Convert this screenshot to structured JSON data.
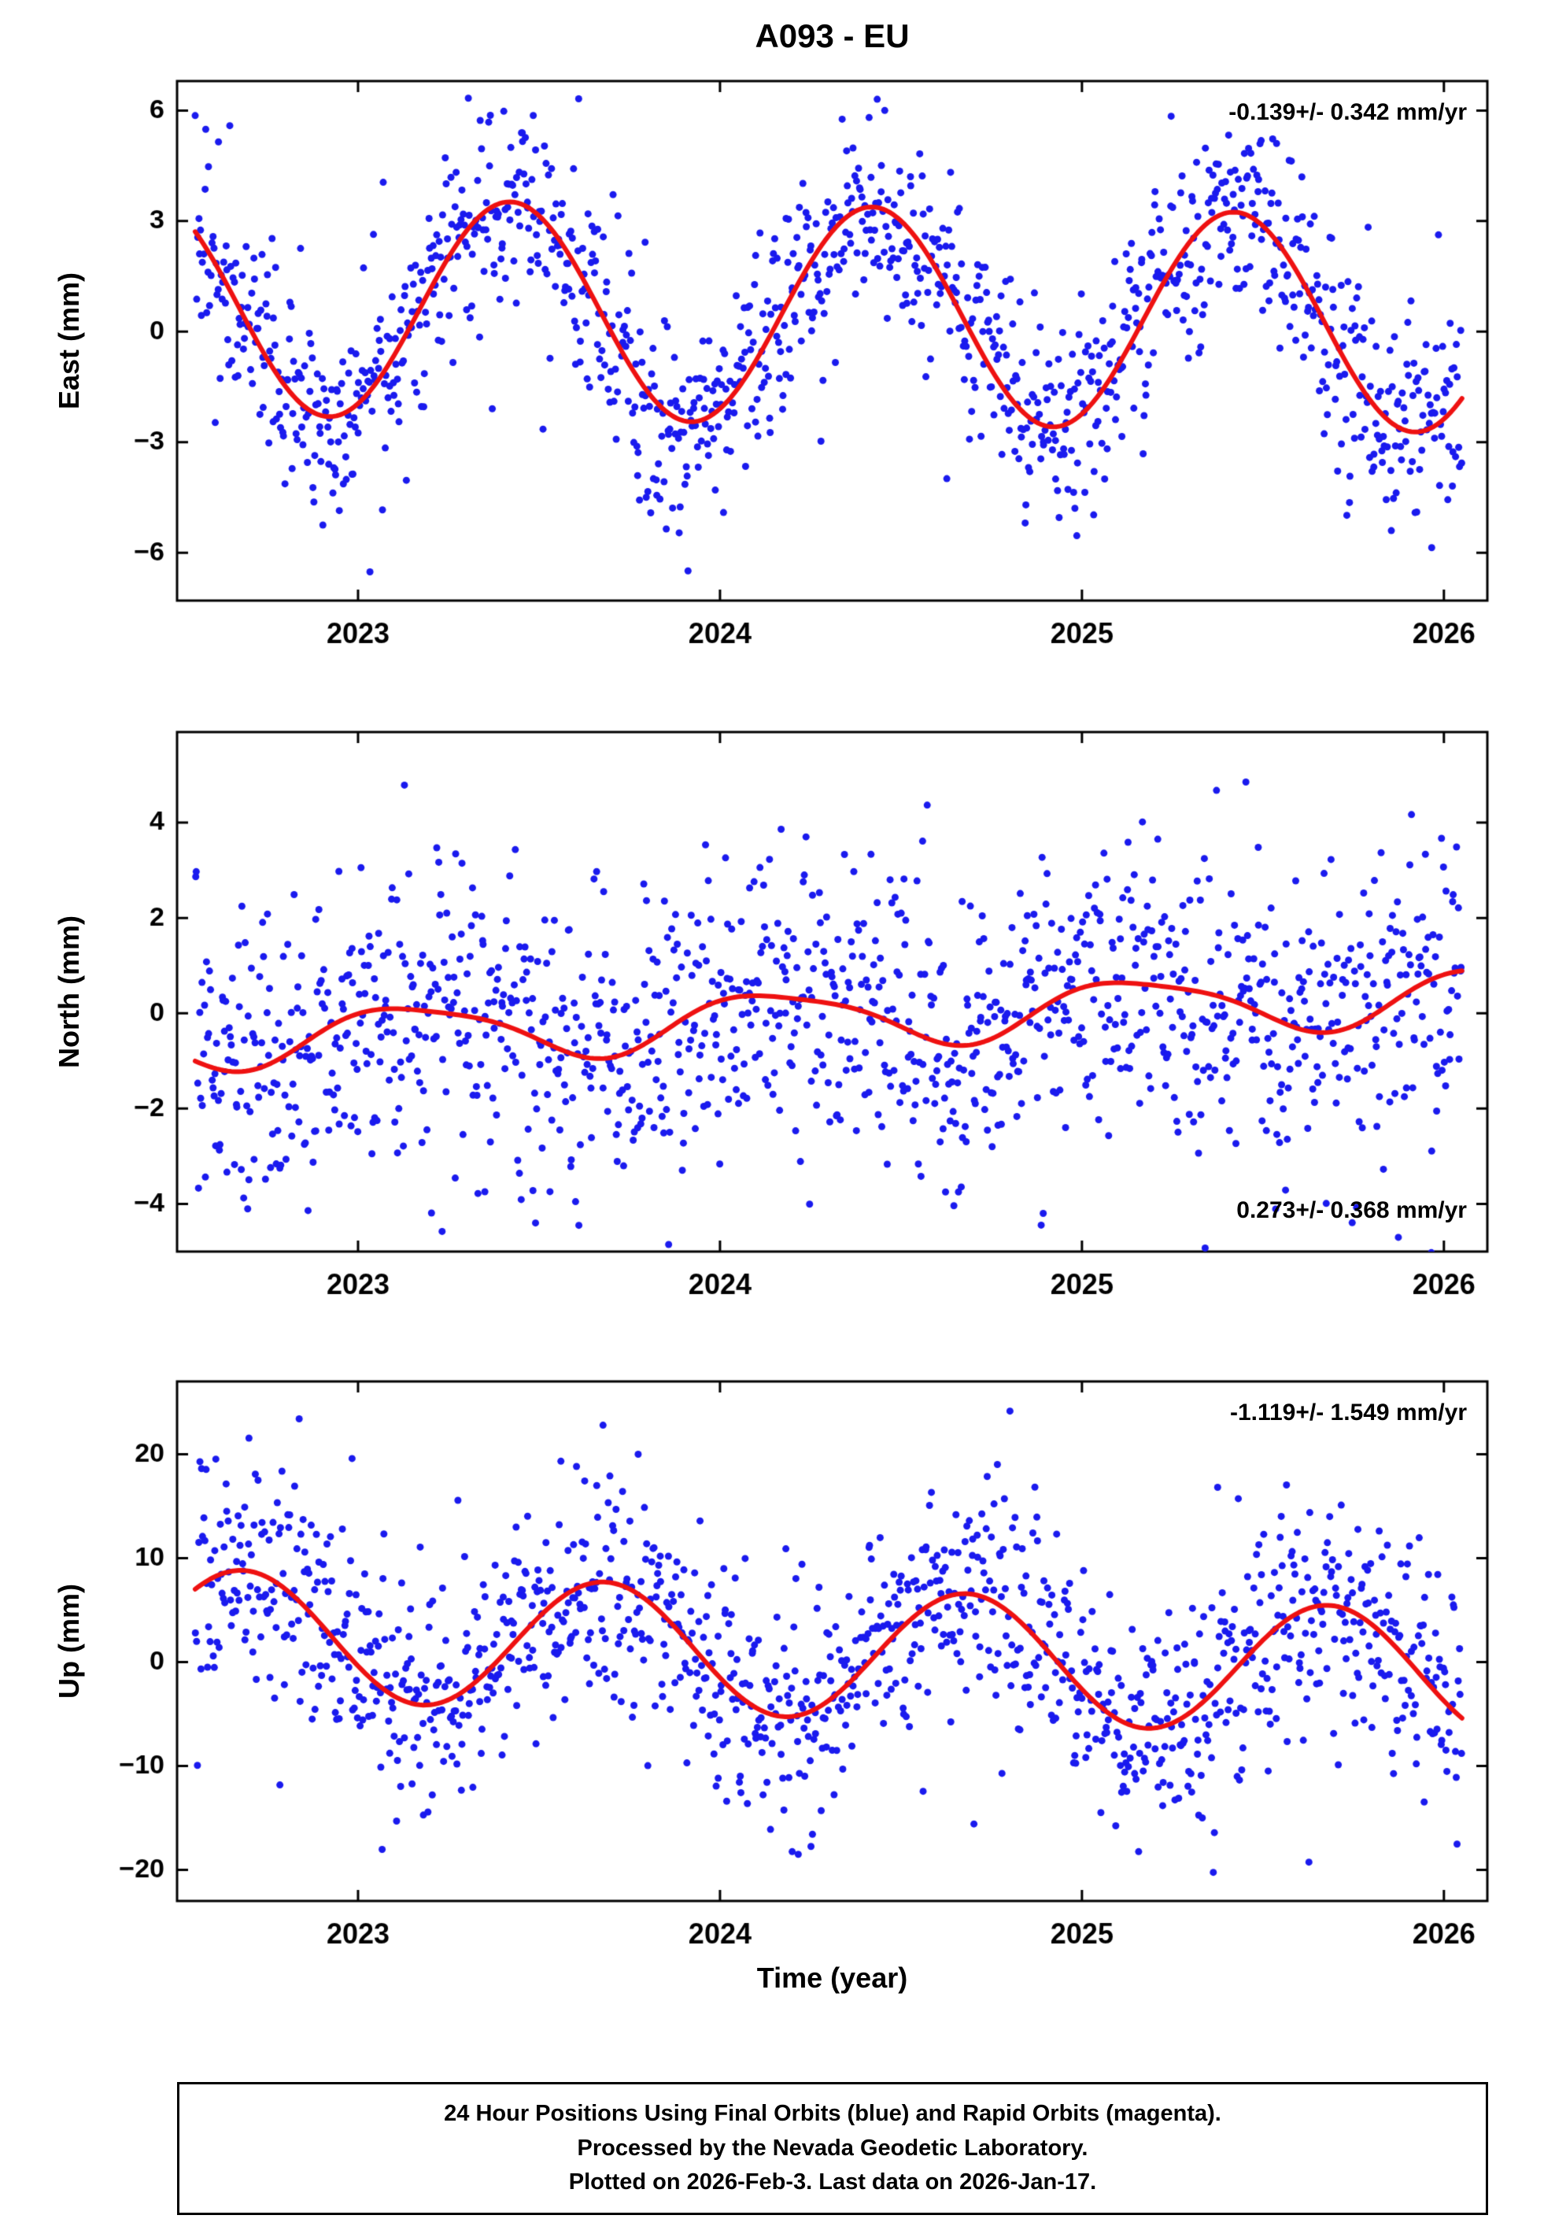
{
  "title": "A093 - EU",
  "footer": {
    "line1": "24 Hour Positions Using Final Orbits (blue) and Rapid Orbits (magenta).",
    "line2": "Processed by the Nevada Geodetic Laboratory.",
    "line3": "Plotted on 2026-Feb-3. Last data on 2026-Jan-17."
  },
  "chart_data": {
    "type": "scatter",
    "title": "A093 - EU",
    "xlabel": "Time (year)",
    "x_range": [
      2022.5,
      2026.12
    ],
    "x_ticks": [
      2023,
      2024,
      2025,
      2026
    ],
    "data_span": [
      2022.55,
      2026.05
    ],
    "grid": false,
    "legend": "none",
    "colors": {
      "points": "#1a1aee",
      "model": "#ee1111",
      "frame": "#000000"
    },
    "panels": [
      {
        "id": "east",
        "ylabel": "East (mm)",
        "y_range": [
          -7.3,
          6.8
        ],
        "y_ticks": [
          -6,
          -3,
          0,
          3,
          6
        ],
        "trend_label": "-0.139+/- 0.342 mm/yr",
        "trend_label_pos": "top-right",
        "model": {
          "mean": 0.45,
          "trend_mm_yr": -0.139,
          "tref": 2024.3,
          "annual_amp": 2.95,
          "annual_peak": 0.42,
          "semi_amp": 0.0,
          "semi_peak": 0.0
        },
        "scatter": {
          "n": 1250,
          "seed": 7,
          "sd": 1.35,
          "outlier_frac": 0.06,
          "outlier_scale": 2.1
        }
      },
      {
        "id": "north",
        "ylabel": "North (mm)",
        "y_range": [
          -5.0,
          5.9
        ],
        "y_ticks": [
          -4,
          -2,
          0,
          2,
          4
        ],
        "trend_label": "0.273+/- 0.368 mm/yr",
        "trend_label_pos": "bottom-right",
        "model": {
          "mean": -0.12,
          "trend_mm_yr": 0.273,
          "tref": 2024.2,
          "annual_amp": 0.58,
          "annual_peak": 0.15,
          "semi_amp": 0.12,
          "semi_peak": 0.95
        },
        "scatter": {
          "n": 1250,
          "seed": 13,
          "sd": 1.5,
          "outlier_frac": 0.06,
          "outlier_scale": 2.0
        }
      },
      {
        "id": "up",
        "ylabel": "Up (mm)",
        "y_range": [
          -23,
          27
        ],
        "y_ticks": [
          -20,
          -10,
          0,
          10,
          20
        ],
        "trend_label": "-1.119+/- 1.549 mm/yr",
        "trend_label_pos": "top-right",
        "model": {
          "mean": 0.8,
          "trend_mm_yr": -1.119,
          "tref": 2024.3,
          "annual_amp": 6.2,
          "annual_peak": 0.68,
          "semi_amp": 0.0,
          "semi_peak": 0.0
        },
        "scatter": {
          "n": 1250,
          "seed": 29,
          "sd": 5.6,
          "outlier_frac": 0.06,
          "outlier_scale": 2.0
        }
      }
    ]
  }
}
